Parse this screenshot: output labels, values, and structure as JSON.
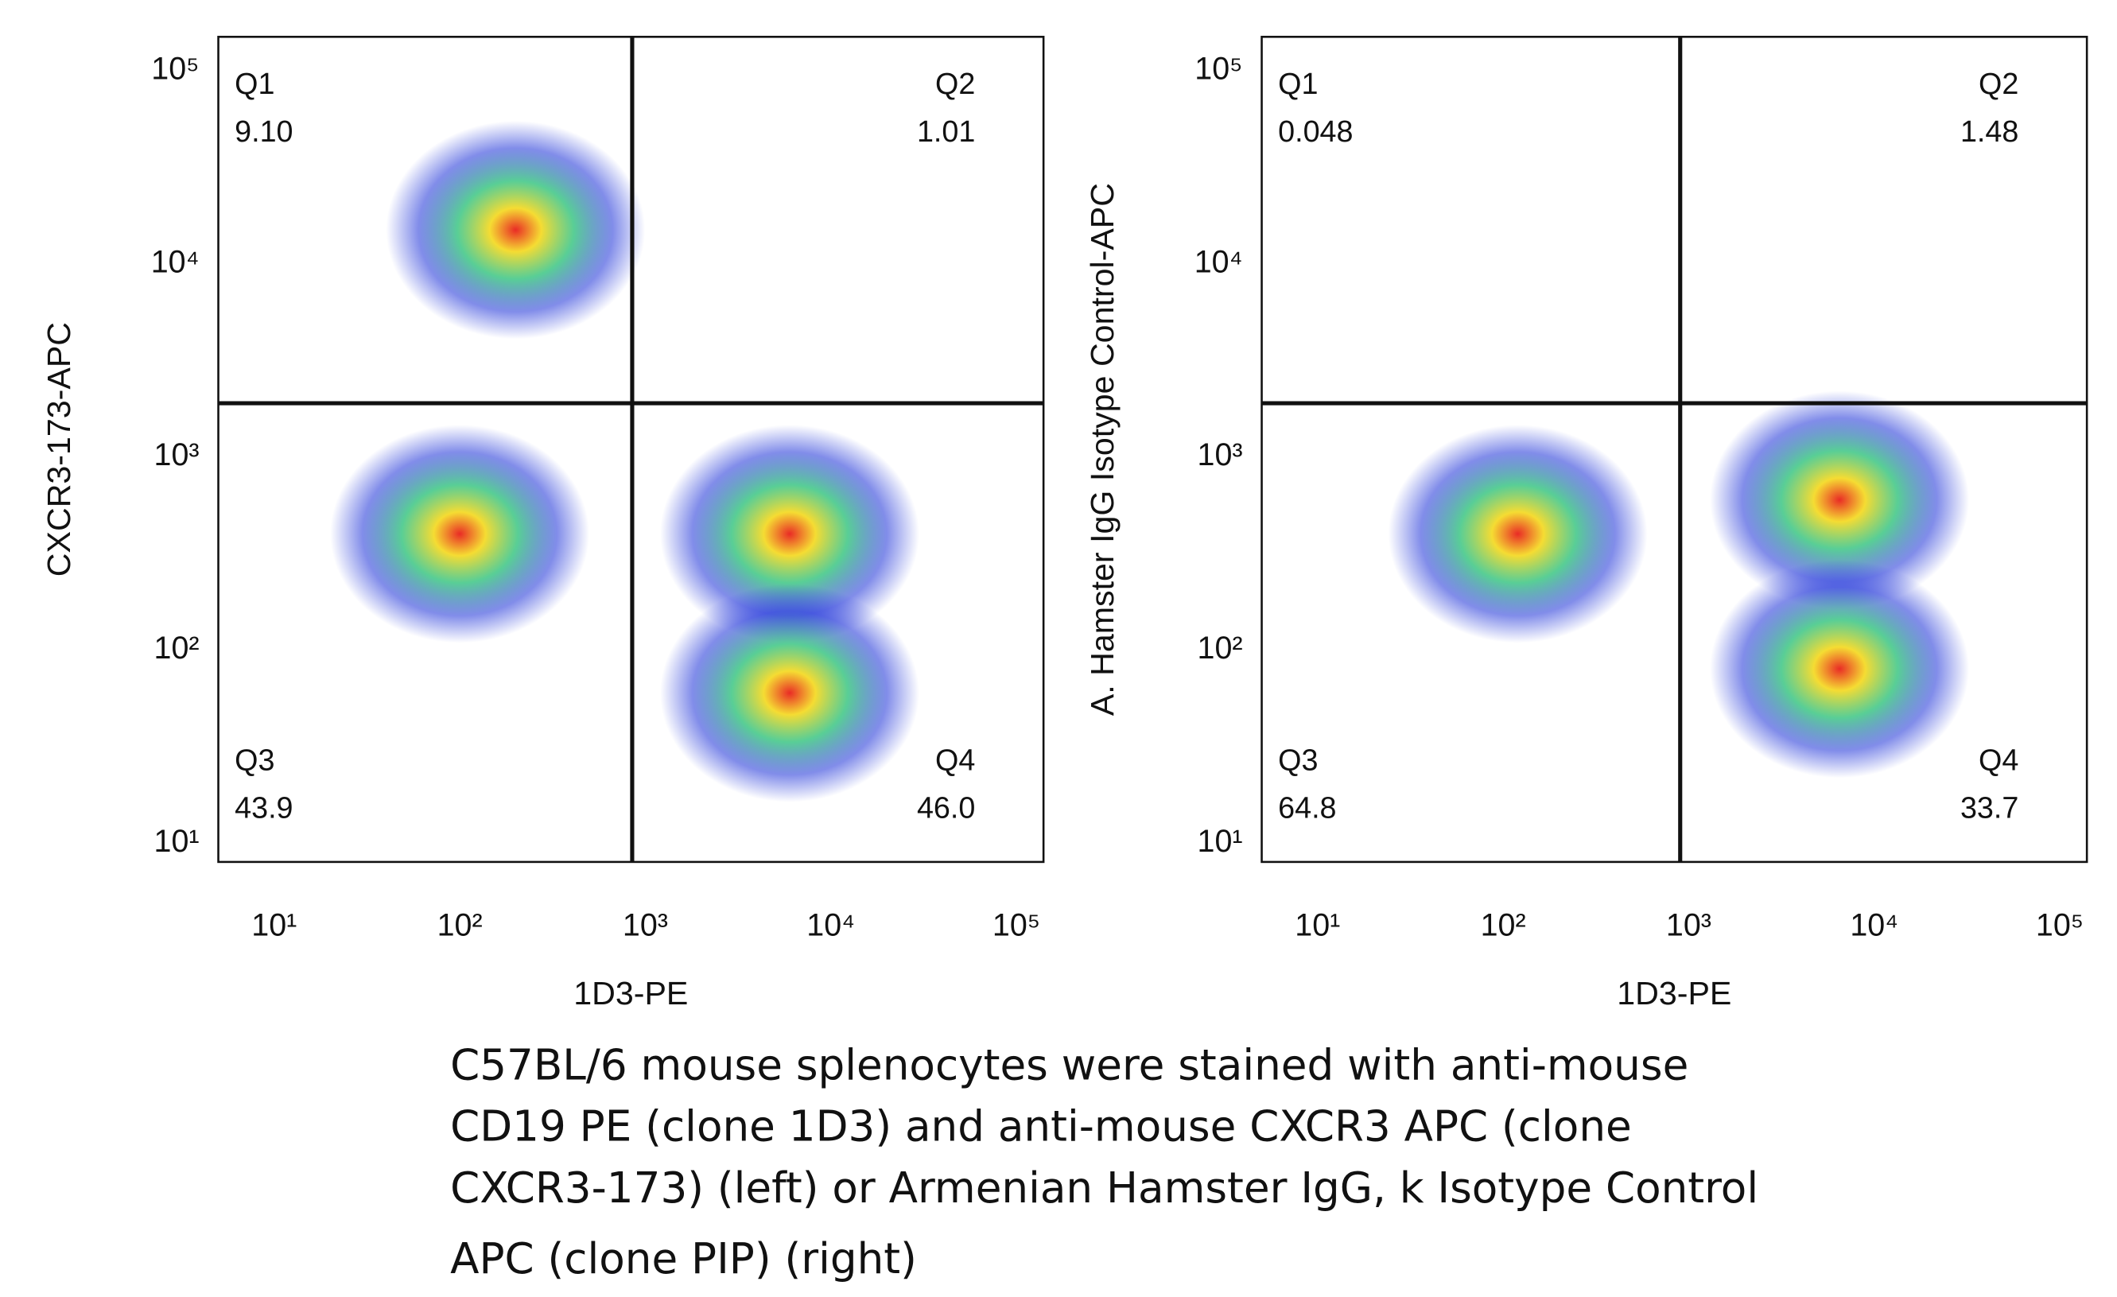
{
  "chart_data": [
    {
      "type": "flow-quadrant",
      "x_label": "1D3-PE",
      "y_label": "CXCR3-173-APC",
      "log_x": true,
      "log_y": true,
      "xlim": [
        5,
        140000
      ],
      "ylim": [
        8,
        150000
      ],
      "xticks": [
        {
          "value": 10,
          "label": "10¹"
        },
        {
          "value": 100,
          "label": "10²"
        },
        {
          "value": 1000,
          "label": "10³"
        },
        {
          "value": 10000,
          "label": "10⁴"
        },
        {
          "value": 100000,
          "label": "10⁵"
        }
      ],
      "yticks": [
        {
          "value": 10,
          "label": "10¹"
        },
        {
          "value": 100,
          "label": "10²"
        },
        {
          "value": 1000,
          "label": "10³"
        },
        {
          "value": 10000,
          "label": "10⁴"
        },
        {
          "value": 100000,
          "label": "10⁵"
        }
      ],
      "gate": {
        "x": 850,
        "y": 1900
      },
      "quadrants": {
        "names": [
          "Q1",
          "Q2",
          "Q3",
          "Q4"
        ],
        "values": [
          9.1,
          1.01,
          43.9,
          46.0
        ],
        "value_labels": [
          "9.10",
          "1.01",
          "43.9",
          "46.0"
        ]
      },
      "populations": {
        "x": [
          100,
          6000,
          6000,
          200
        ],
        "y": [
          400,
          400,
          60,
          15000
        ]
      }
    },
    {
      "type": "flow-quadrant",
      "x_label": "1D3-PE",
      "y_label": "A. Hamster IgG Isotype Control-APC",
      "log_x": true,
      "log_y": true,
      "xlim": [
        5,
        140000
      ],
      "ylim": [
        8,
        150000
      ],
      "xticks": [
        {
          "value": 10,
          "label": "10¹"
        },
        {
          "value": 100,
          "label": "10²"
        },
        {
          "value": 1000,
          "label": "10³"
        },
        {
          "value": 10000,
          "label": "10⁴"
        },
        {
          "value": 100000,
          "label": "10⁵"
        }
      ],
      "yticks": [
        {
          "value": 10,
          "label": "10¹"
        },
        {
          "value": 100,
          "label": "10²"
        },
        {
          "value": 1000,
          "label": "10³"
        },
        {
          "value": 10000,
          "label": "10⁴"
        },
        {
          "value": 100000,
          "label": "10⁵"
        }
      ],
      "gate": {
        "x": 900,
        "y": 1900
      },
      "quadrants": {
        "names": [
          "Q1",
          "Q2",
          "Q3",
          "Q4"
        ],
        "values": [
          0.048,
          1.48,
          64.8,
          33.7
        ],
        "value_labels": [
          "0.048",
          "1.48",
          "64.8",
          "33.7"
        ]
      },
      "populations": {
        "x": [
          120,
          6500,
          6500
        ],
        "y": [
          400,
          600,
          80
        ]
      }
    }
  ],
  "caption": [
    "C57BL/6 mouse splenocytes were stained with anti-mouse",
    "CD19 PE (clone 1D3) and anti-mouse CXCR3 APC (clone",
    "CXCR3-173) (left) or Armenian Hamster IgG, k Isotype Control",
    "APC (clone PIP) (right)"
  ]
}
